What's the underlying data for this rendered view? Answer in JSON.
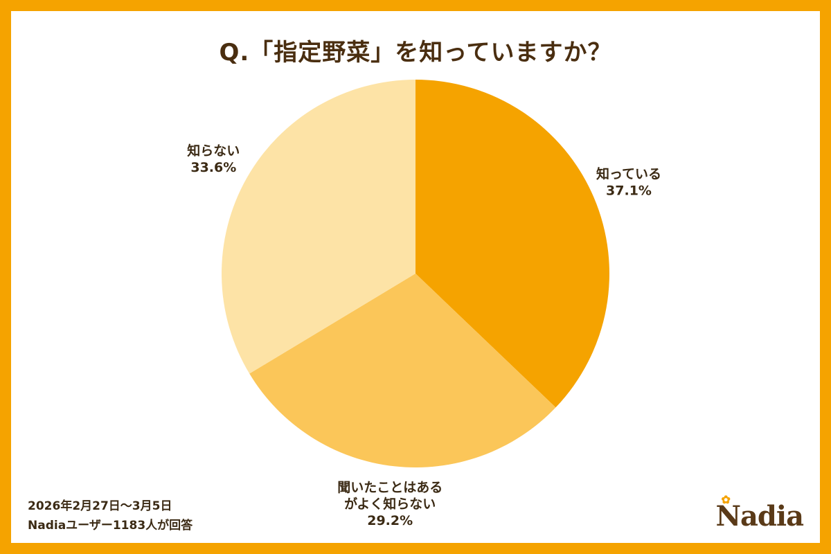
{
  "title": "Q.「指定野菜」を知っていますか？",
  "chart_data": {
    "type": "pie",
    "title": "Q.「指定野菜」を知っていますか？",
    "slices": [
      {
        "label": "知っている",
        "value": 37.1,
        "display": "37.1%",
        "color": "#f5a300"
      },
      {
        "label": "聞いたことはあるがよく知らない",
        "label_lines": [
          "聞いたことはある",
          "がよく知らない"
        ],
        "value": 29.2,
        "display": "29.2%",
        "color": "#fbc659"
      },
      {
        "label": "知らない",
        "value": 33.6,
        "display": "33.6%",
        "color": "#fde3a6"
      }
    ]
  },
  "footnote": {
    "period": "2026年2月27日～3月5日",
    "respondents": "Nadiaユーザー1183人が回答"
  },
  "brand": {
    "logo_text": "Nadia",
    "accent_color": "#f5a300",
    "text_color": "#4a2e10"
  }
}
